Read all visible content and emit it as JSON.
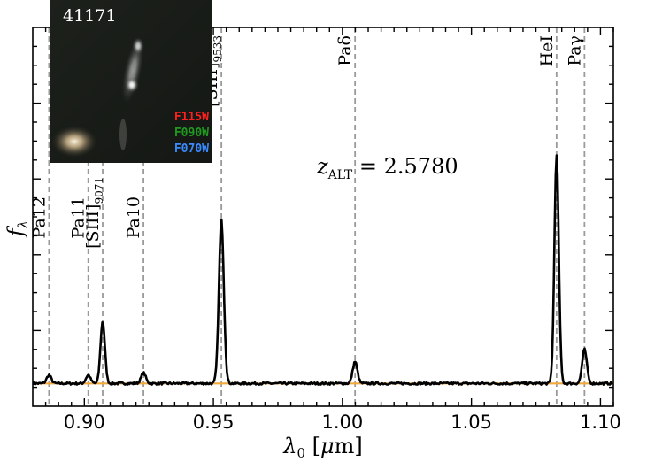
{
  "chart_data": {
    "type": "line",
    "xlabel": "λ₀ [μm]",
    "ylabel": "f_λ",
    "xlim": [
      0.88,
      1.105
    ],
    "ylim": [
      0,
      1.0
    ],
    "x_ticks": [
      0.9,
      0.95,
      1.0,
      1.05,
      1.1
    ],
    "x_tick_labels": [
      "0.90",
      "0.95",
      "1.00",
      "1.05",
      "1.10"
    ],
    "grid": false,
    "annotation": "z_ALT = 2.5780",
    "redshift": 2.578,
    "continuum_level": 0.06,
    "continuum_color": "#f2a93b",
    "spectrum_color": "#000000",
    "lines": [
      {
        "name": "Pa12",
        "sub": "",
        "x": 0.8863
      },
      {
        "name": "Pa11",
        "sub": "",
        "x": 0.9015
      },
      {
        "name": "[SIII]",
        "sub": "9071",
        "x": 0.9071
      },
      {
        "name": "Pa10",
        "sub": "",
        "x": 0.9229
      },
      {
        "name": "[SIII]",
        "sub": "9533",
        "x": 0.9531
      },
      {
        "name": "Paδ",
        "sub": "",
        "x": 1.0049
      },
      {
        "name": "HeI",
        "sub": "",
        "x": 1.083
      },
      {
        "name": "Paγ",
        "sub": "",
        "x": 1.0938
      }
    ],
    "peaks": [
      {
        "x": 0.8863,
        "amp": 0.022,
        "sigma": 0.0009
      },
      {
        "x": 0.9015,
        "amp": 0.022,
        "sigma": 0.0009
      },
      {
        "x": 0.9071,
        "amp": 0.165,
        "sigma": 0.00085
      },
      {
        "x": 0.9229,
        "amp": 0.028,
        "sigma": 0.0009
      },
      {
        "x": 0.9531,
        "amp": 0.43,
        "sigma": 0.00095
      },
      {
        "x": 1.0049,
        "amp": 0.058,
        "sigma": 0.0009
      },
      {
        "x": 1.083,
        "amp": 0.6,
        "sigma": 0.00085
      },
      {
        "x": 1.0938,
        "amp": 0.09,
        "sigma": 0.0009
      }
    ]
  },
  "inset": {
    "object_id": "41171",
    "filters": [
      {
        "label": "F115W",
        "color": "#ff2020"
      },
      {
        "label": "F090W",
        "color": "#1f9a1f"
      },
      {
        "label": "F070W",
        "color": "#3a8bff"
      }
    ]
  }
}
